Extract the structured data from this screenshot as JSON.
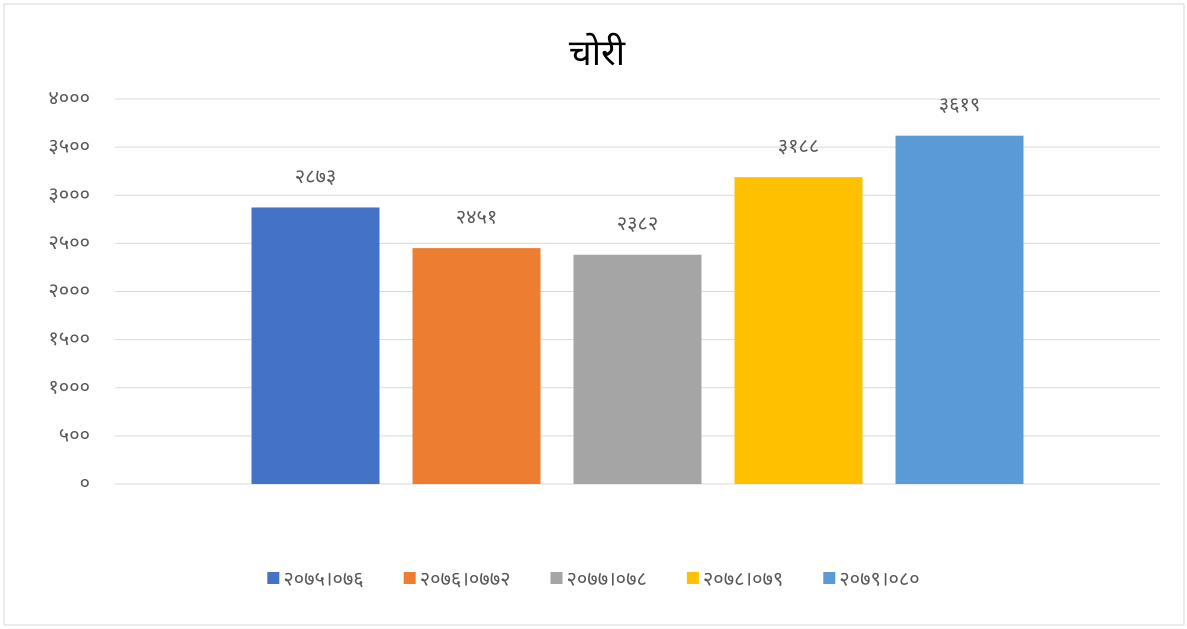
{
  "chart_data": {
    "type": "bar",
    "title": "चोरी",
    "categories": [
      null
    ],
    "series": [
      {
        "name": "२०७५।०७६",
        "color": "#4472c4",
        "values": [
          2873
        ],
        "value_labels": [
          "२८७३"
        ]
      },
      {
        "name": "२०७६।०७७२",
        "color": "#ed7d31",
        "values": [
          2451
        ],
        "value_labels": [
          "२४५१"
        ]
      },
      {
        "name": "२०७७।०७८",
        "color": "#a5a5a5",
        "values": [
          2382
        ],
        "value_labels": [
          "२३८२"
        ]
      },
      {
        "name": "२०७८।०७९",
        "color": "#ffc000",
        "values": [
          3188
        ],
        "value_labels": [
          "३१८८"
        ]
      },
      {
        "name": "२०७९।०८०",
        "color": "#5b9bd5",
        "values": [
          3619
        ],
        "value_labels": [
          "३६१९"
        ]
      }
    ],
    "ylim": [
      0,
      4000
    ],
    "yticks": [
      {
        "value": 0,
        "label": "०"
      },
      {
        "value": 500,
        "label": "५००"
      },
      {
        "value": 1000,
        "label": "१०००"
      },
      {
        "value": 1500,
        "label": "१५००"
      },
      {
        "value": 2000,
        "label": "२०००"
      },
      {
        "value": 2500,
        "label": "२५००"
      },
      {
        "value": 3000,
        "label": "३०००"
      },
      {
        "value": 3500,
        "label": "३५००"
      },
      {
        "value": 4000,
        "label": "४०००"
      }
    ],
    "grid": true,
    "legend": "bottom"
  }
}
